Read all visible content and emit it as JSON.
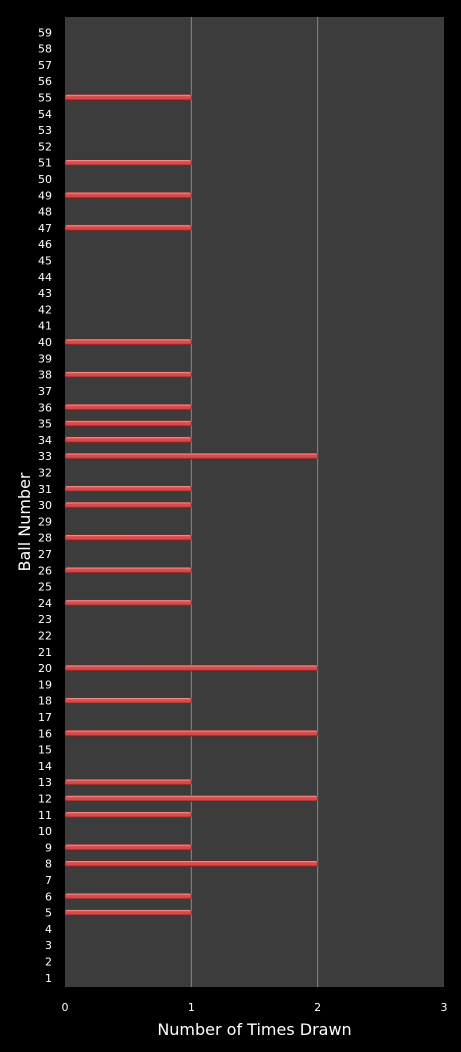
{
  "chart_data": {
    "type": "bar",
    "orientation": "horizontal",
    "title": "",
    "xlabel": "Number of Times Drawn",
    "ylabel": "Ball Number",
    "xlim": [
      0,
      3
    ],
    "xticks": [
      0,
      1,
      2,
      3
    ],
    "grid": "vertical",
    "legend": "none",
    "categories": [
      "1",
      "2",
      "3",
      "4",
      "5",
      "6",
      "7",
      "8",
      "9",
      "10",
      "11",
      "12",
      "13",
      "14",
      "15",
      "16",
      "17",
      "18",
      "19",
      "20",
      "21",
      "22",
      "23",
      "24",
      "25",
      "26",
      "27",
      "28",
      "29",
      "30",
      "31",
      "32",
      "33",
      "34",
      "35",
      "36",
      "37",
      "38",
      "39",
      "40",
      "41",
      "42",
      "43",
      "44",
      "45",
      "46",
      "47",
      "48",
      "49",
      "50",
      "51",
      "52",
      "53",
      "54",
      "55",
      "56",
      "57",
      "58",
      "59"
    ],
    "values": [
      0,
      0,
      0,
      0,
      1,
      1,
      0,
      2,
      1,
      0,
      1,
      2,
      1,
      0,
      0,
      2,
      0,
      1,
      0,
      2,
      0,
      0,
      0,
      1,
      0,
      1,
      0,
      1,
      0,
      1,
      1,
      0,
      2,
      1,
      1,
      1,
      0,
      1,
      0,
      1,
      0,
      0,
      0,
      0,
      0,
      0,
      1,
      0,
      1,
      0,
      1,
      0,
      0,
      0,
      1,
      0,
      0,
      0,
      0
    ],
    "colors": {
      "background": "#000000",
      "plot_area": "#3c3c3c",
      "gridline": "#8a8a8a",
      "bar": "#d94a4a",
      "bar_highlight": "#f7b0b0",
      "bar_shadow": "#7a1c1c",
      "text": "#ffffff"
    }
  }
}
